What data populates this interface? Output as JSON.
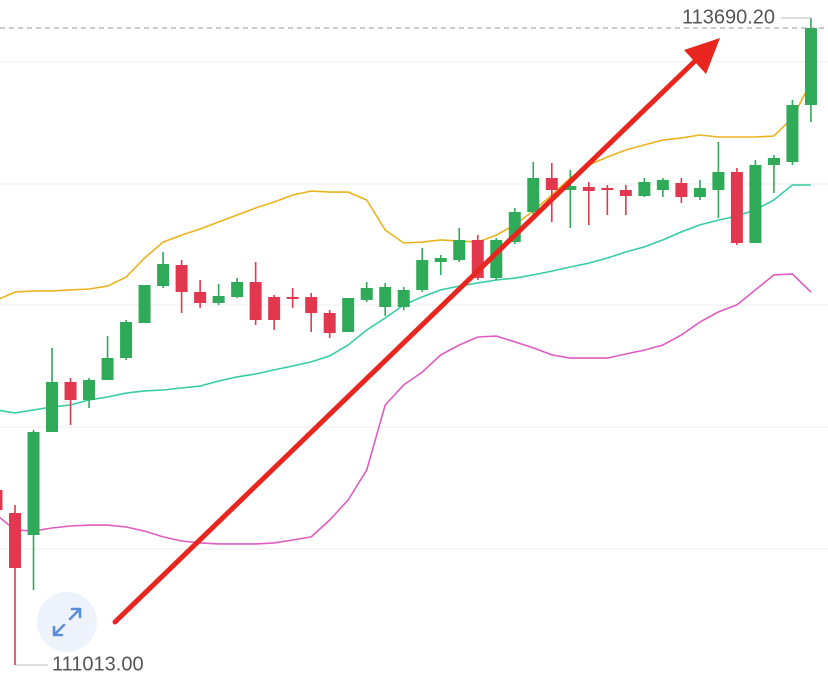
{
  "chart_data": {
    "type": "candlestick",
    "ylim": [
      110942.6,
      113764.7
    ],
    "gridlines": [
      113508.1,
      113003.3,
      112502.6,
      111997.8,
      111492.9
    ],
    "up_color": "#2eaa58",
    "down_color": "#e2384f",
    "open": [
      111737.1,
      111641.9,
      111550.9,
      111977.1,
      112184.0,
      112109.5,
      112192.3,
      112283.3,
      112428.1,
      112581.2,
      112668.1,
      112556.4,
      112510.9,
      112535.7,
      112597.8,
      112535.7,
      112535.7,
      112535.7,
      112469.5,
      112390.9,
      112523.3,
      112494.3,
      112494.3,
      112564.7,
      112680.5,
      112688.8,
      112771.6,
      112614.3,
      112763.3,
      112887.4,
      113028.1,
      112978.5,
      112990.9,
      112986.8,
      112978.5,
      112953.7,
      112978.5,
      113007.4,
      112949.5,
      112978.5,
      113053.0,
      112759.2,
      113081.9,
      113094.3,
      113330.2
    ],
    "high": [
      111786.7,
      111675.0,
      111985.4,
      112324.7,
      112200.5,
      112200.5,
      112374.3,
      112440.5,
      112585.4,
      112721.9,
      112688.8,
      112606.1,
      112589.5,
      112614.3,
      112680.5,
      112544.0,
      112573.0,
      112552.3,
      112481.9,
      112531.6,
      112597.8,
      112593.6,
      112577.1,
      112738.5,
      112709.5,
      112821.2,
      112792.3,
      112779.9,
      112904.0,
      113094.3,
      113090.2,
      113061.2,
      113011.6,
      112999.2,
      112999.2,
      113028.1,
      113028.1,
      113028.1,
      113019.9,
      113177.1,
      113069.5,
      113102.6,
      113123.3,
      113350.9,
      113690.2
    ],
    "low": [
      111612.9,
      111013.0,
      111323.3,
      111977.1,
      112006.0,
      112076.4,
      112192.3,
      112275.0,
      112428.1,
      112573.0,
      112469.5,
      112490.2,
      112502.6,
      112531.6,
      112419.8,
      112399.2,
      112490.2,
      112390.9,
      112366.1,
      112390.9,
      112515.0,
      112457.1,
      112481.9,
      112556.4,
      112626.7,
      112680.5,
      112606.1,
      112606.1,
      112755.0,
      112875.0,
      112846.1,
      112821.2,
      112833.6,
      112875.0,
      112875.0,
      112949.5,
      112949.5,
      112924.7,
      112937.1,
      112862.6,
      112750.9,
      112759.2,
      112966.1,
      113081.9,
      113259.9
    ],
    "close": [
      111654.3,
      111414.3,
      111977.1,
      112184.0,
      112109.5,
      112192.3,
      112283.3,
      112432.3,
      112585.4,
      112672.3,
      112556.4,
      112510.9,
      112539.9,
      112597.8,
      112440.5,
      112440.5,
      112527.4,
      112469.5,
      112386.7,
      112531.6,
      112573.0,
      112577.1,
      112564.7,
      112688.8,
      112697.1,
      112771.6,
      112614.3,
      112771.6,
      112887.4,
      113028.1,
      112978.5,
      112995.0,
      112974.3,
      112978.5,
      112953.7,
      113011.6,
      113019.9,
      112949.5,
      112986.8,
      113053.0,
      112759.2,
      113081.9,
      113110.9,
      113330.2,
      113648.8
    ],
    "overlays": [
      {
        "color": "#e9b320",
        "values": [
          112523,
          112556,
          112561,
          112561,
          112565,
          112569,
          112581,
          112618,
          112697,
          112763,
          112792,
          112817,
          112846,
          112875,
          112904,
          112929,
          112958,
          112974,
          112970,
          112970,
          112937,
          112813,
          112759,
          112763,
          112772,
          112767,
          112763,
          112792,
          112834,
          112892,
          112958,
          113028,
          113082,
          113115,
          113144,
          113165,
          113185,
          113194,
          113206,
          113198,
          113198,
          113198,
          113202,
          113276,
          113425
        ]
      },
      {
        "color": "#36cca4",
        "values": [
          112068,
          112056,
          112068,
          112081,
          112089,
          112110,
          112122,
          112138,
          112147,
          112151,
          112159,
          112167,
          112188,
          112205,
          112217,
          112234,
          112250,
          112267,
          112292,
          112337,
          112399,
          112449,
          112503,
          112536,
          112565,
          112581,
          112594,
          112606,
          112614,
          112627,
          112643,
          112660,
          112676,
          112697,
          112722,
          112743,
          112772,
          112805,
          112834,
          112854,
          112871,
          112896,
          112937,
          112999,
          112999
        ]
      },
      {
        "color": "#e05cbf",
        "values": [
          111634,
          111572,
          111567,
          111580,
          111588,
          111592,
          111592,
          111584,
          111567,
          111543,
          111526,
          111518,
          111514,
          111514,
          111514,
          111518,
          111530,
          111543,
          111613,
          111696,
          111820,
          112089,
          112172,
          112225,
          112296,
          112337,
          112370,
          112374,
          112350,
          112325,
          112296,
          112283,
          112283,
          112283,
          112300,
          112316,
          112337,
          112379,
          112432,
          112474,
          112503,
          112565,
          112627,
          112631,
          112556
        ]
      }
    ],
    "price_line": "dashed",
    "high_label": {
      "value": 113690.2,
      "label": "113690.20"
    },
    "low_label": {
      "value": 111013.0,
      "label": "111013.00"
    }
  }
}
